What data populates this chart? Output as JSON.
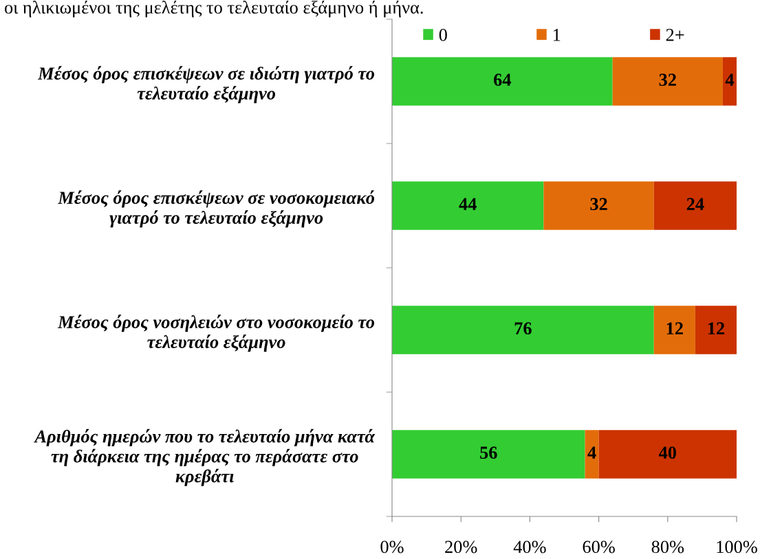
{
  "chart_data": {
    "type": "bar",
    "orientation": "horizontal",
    "stacked": true,
    "categories": [
      "Μέσος όρος επισκέψεων σε ιδιώτη γιατρό το\nτελευταίο εξάμηνο",
      "Μέσος όρος επισκέψεων σε νοσοκομειακό\nγιατρό το τελευταίο εξάμηνο",
      "Μέσος όρος νοσηλειών στο νοσοκομείο το\nτελευταίο εξάμηνο",
      "Αριθμός ημερών που το τελευταίο μήνα κατά\nτη διάρκεια της ημέρας το περάσατε στο\nκρεβάτι"
    ],
    "series": [
      {
        "name": "0",
        "color": "#33cc33",
        "values": [
          64,
          44,
          76,
          56
        ]
      },
      {
        "name": "1",
        "color": "#e36c0a",
        "values": [
          32,
          32,
          12,
          4
        ]
      },
      {
        "name": "2+",
        "color": "#cc3300",
        "values": [
          4,
          24,
          12,
          40
        ]
      }
    ],
    "xlim": [
      0,
      100
    ],
    "xticks": [
      {
        "value": 0,
        "label": "0%"
      },
      {
        "value": 20,
        "label": "20%"
      },
      {
        "value": 40,
        "label": "40%"
      },
      {
        "value": 60,
        "label": "60%"
      },
      {
        "value": 80,
        "label": "80%"
      },
      {
        "value": 100,
        "label": "100%"
      }
    ],
    "data_labels": true,
    "legend": "top",
    "annotations": [
      "οι ηλικιωμένοι της μελέτης το τελευταίο εξάμηνο ή μήνα."
    ]
  }
}
